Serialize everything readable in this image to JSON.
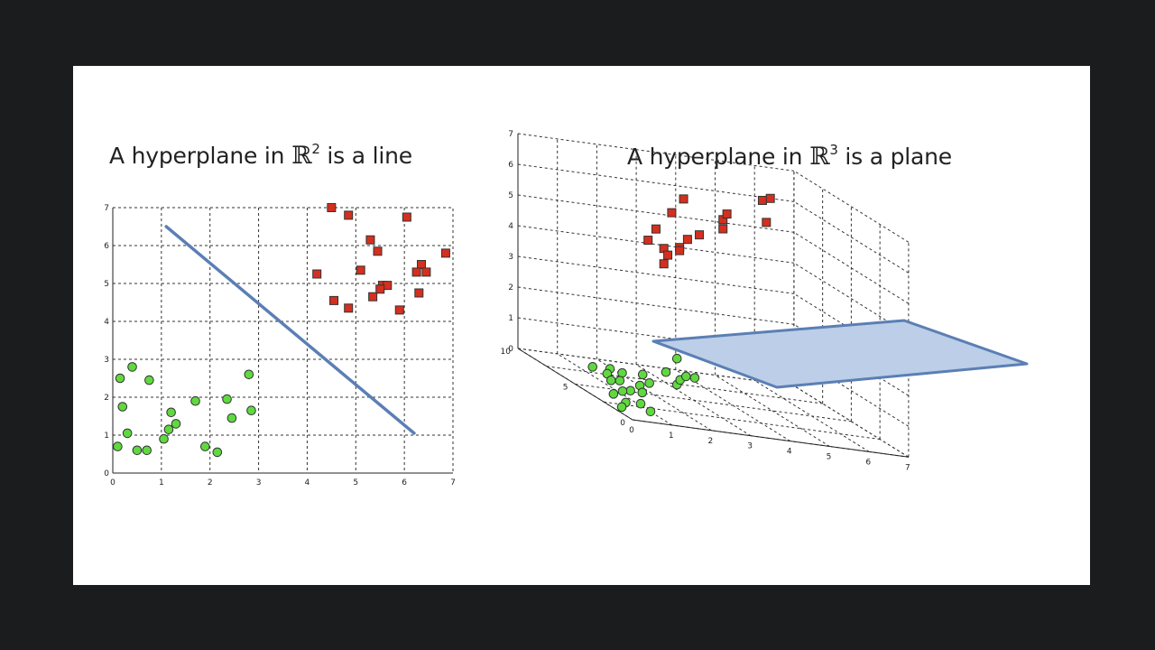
{
  "titles": {
    "left": {
      "prefix": "A hyperplane in ",
      "symbol": "ℝ",
      "exponent": "2",
      "suffix": " is a line"
    },
    "right": {
      "prefix": "A hyperplane in ",
      "symbol": "ℝ",
      "exponent": "3",
      "suffix": " is a plane"
    }
  },
  "colors": {
    "red_marker": "#d42f1f",
    "green_marker": "#5fd93f",
    "hyperplane_stroke": "#5b7fb4",
    "plane_fill": "#bccee8"
  },
  "chart_data": [
    {
      "type": "scatter",
      "xlim": [
        0,
        7
      ],
      "ylim": [
        0,
        7
      ],
      "xticks": [
        "0",
        "1",
        "2",
        "3",
        "4",
        "5",
        "6",
        "7"
      ],
      "yticks": [
        "0",
        "1",
        "2",
        "3",
        "4",
        "5",
        "6",
        "7"
      ],
      "grid": true,
      "series": [
        {
          "marker": "square",
          "color": "red",
          "points": [
            [
              4.5,
              7.0
            ],
            [
              4.85,
              6.8
            ],
            [
              6.05,
              6.75
            ],
            [
              5.3,
              6.15
            ],
            [
              5.45,
              5.85
            ],
            [
              6.85,
              5.8
            ],
            [
              4.2,
              5.25
            ],
            [
              5.1,
              5.35
            ],
            [
              6.35,
              5.5
            ],
            [
              6.25,
              5.3
            ],
            [
              6.45,
              5.3
            ],
            [
              5.55,
              4.95
            ],
            [
              5.65,
              4.95
            ],
            [
              5.5,
              4.85
            ],
            [
              5.35,
              4.65
            ],
            [
              6.3,
              4.75
            ],
            [
              4.55,
              4.55
            ],
            [
              4.85,
              4.35
            ],
            [
              5.9,
              4.3
            ]
          ]
        },
        {
          "marker": "circle",
          "color": "green",
          "points": [
            [
              0.4,
              2.8
            ],
            [
              0.15,
              2.5
            ],
            [
              0.75,
              2.45
            ],
            [
              2.8,
              2.6
            ],
            [
              0.2,
              1.75
            ],
            [
              1.7,
              1.9
            ],
            [
              2.35,
              1.95
            ],
            [
              1.2,
              1.6
            ],
            [
              2.85,
              1.65
            ],
            [
              1.3,
              1.3
            ],
            [
              2.45,
              1.45
            ],
            [
              1.15,
              1.15
            ],
            [
              0.3,
              1.05
            ],
            [
              1.05,
              0.9
            ],
            [
              0.1,
              0.7
            ],
            [
              0.5,
              0.6
            ],
            [
              0.7,
              0.6
            ],
            [
              1.9,
              0.7
            ],
            [
              2.15,
              0.55
            ]
          ]
        }
      ],
      "hyperplane": {
        "from": [
          1.1,
          6.5
        ],
        "to": [
          6.2,
          1.05
        ]
      }
    },
    {
      "type": "scatter3d",
      "xlim": [
        0,
        7
      ],
      "ylim": [
        0,
        10
      ],
      "zlim": [
        0,
        7
      ],
      "xticks": [
        "0",
        "1",
        "2",
        "3",
        "4",
        "5",
        "6",
        "7"
      ],
      "yticks": [
        "0",
        "5",
        "10"
      ],
      "zticks": [
        "0",
        "1",
        "2",
        "3",
        "4",
        "5",
        "6",
        "7"
      ],
      "grid": true,
      "series": [
        {
          "marker": "square",
          "color": "red",
          "points": [
            [
              5.2,
              10,
              5.1
            ],
            [
              3.9,
              10,
              5.1
            ],
            [
              6.2,
              10,
              5.9
            ],
            [
              6.4,
              10,
              6.0
            ],
            [
              5.2,
              10,
              4.8
            ],
            [
              4.6,
              10,
              4.5
            ],
            [
              3.5,
              10,
              4.5
            ],
            [
              3.3,
              10,
              4.1
            ],
            [
              3.7,
              10,
              3.9
            ],
            [
              3.8,
              10,
              3.7
            ],
            [
              4.1,
              10,
              4.0
            ],
            [
              4.3,
              10,
              4.3
            ],
            [
              3.7,
              10,
              3.4
            ],
            [
              4.2,
              10,
              5.6
            ],
            [
              6.3,
              10,
              5.2
            ],
            [
              5.3,
              10,
              5.3
            ],
            [
              4.1,
              10,
              3.9
            ]
          ]
        },
        {
          "marker": "circle",
          "color": "green",
          "points": [
            [
              2.58,
              5,
              1.28
            ],
            [
              2.3,
              5,
              0.79
            ],
            [
              2.58,
              5,
              0.43
            ],
            [
              2.66,
              5,
              0.6
            ],
            [
              2.81,
              5,
              0.74
            ],
            [
              3.03,
              5,
              0.73
            ],
            [
              0.44,
              5,
              0.64
            ],
            [
              0.88,
              5,
              0.65
            ],
            [
              0.81,
              5,
              0.48
            ],
            [
              1.19,
              5,
              0.57
            ],
            [
              1.71,
              5,
              0.61
            ],
            [
              1.88,
              5,
              0.36
            ],
            [
              1.13,
              5,
              0.31
            ],
            [
              1.64,
              5,
              0.24
            ],
            [
              0.91,
              5,
              0.28
            ],
            [
              1.7,
              5,
              0.02
            ],
            [
              1.4,
              5,
              0.03
            ],
            [
              1.2,
              5,
              -0.02
            ],
            [
              0.97,
              5,
              -0.15
            ],
            [
              1.66,
              5,
              -0.35
            ],
            [
              1.28,
              5,
              -0.38
            ],
            [
              1.18,
              5,
              -0.54
            ],
            [
              1.91,
              5,
              -0.56
            ]
          ]
        }
      ],
      "hyperplane": {
        "z_at_corners": "plane spanning the box at z between 0.8 and 2.4"
      }
    }
  ]
}
